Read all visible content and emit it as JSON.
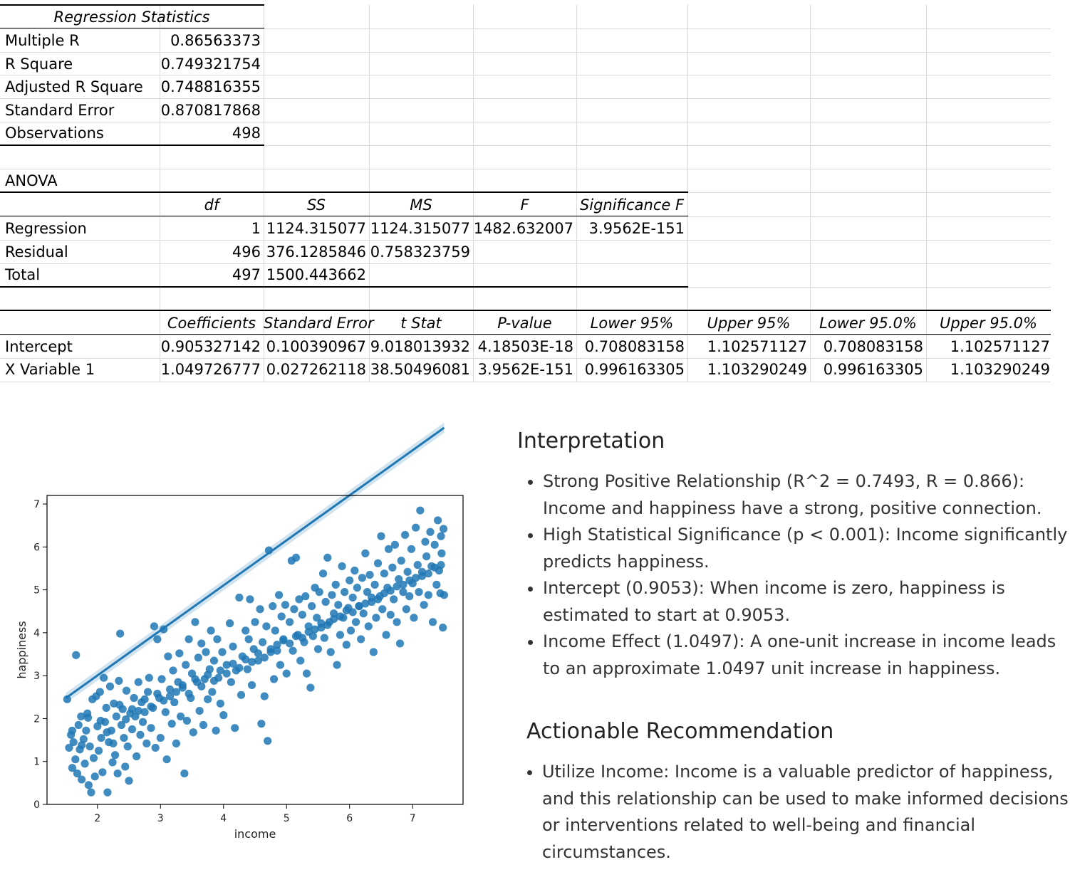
{
  "regression_statistics": {
    "title": "Regression Statistics",
    "rows": [
      {
        "label": "Multiple R",
        "value": "0.86563373"
      },
      {
        "label": "R Square",
        "value": "0.749321754"
      },
      {
        "label": "Adjusted R Square",
        "value": "0.748816355"
      },
      {
        "label": "Standard Error",
        "value": "0.870817868"
      },
      {
        "label": "Observations",
        "value": "498"
      }
    ]
  },
  "anova": {
    "title": "ANOVA",
    "headers": [
      "df",
      "SS",
      "MS",
      "F",
      "Significance F"
    ],
    "rows": [
      {
        "label": "Regression",
        "df": "1",
        "ss": "1124.315077",
        "ms": "1124.315077",
        "f": "1482.632007",
        "sig": "3.9562E-151"
      },
      {
        "label": "Residual",
        "df": "496",
        "ss": "376.1285846",
        "ms": "0.758323759",
        "f": "",
        "sig": ""
      },
      {
        "label": "Total",
        "df": "497",
        "ss": "1500.443662",
        "ms": "",
        "f": "",
        "sig": ""
      }
    ]
  },
  "coefficients": {
    "headers": [
      "Coefficients",
      "Standard Error",
      "t Stat",
      "P-value",
      "Lower 95%",
      "Upper 95%",
      "Lower 95.0%",
      "Upper 95.0%"
    ],
    "rows": [
      {
        "label": "Intercept",
        "values": [
          "0.905327142",
          "0.100390967",
          "9.018013932",
          "4.18503E-18",
          "0.708083158",
          "1.102571127",
          "0.708083158",
          "1.102571127"
        ]
      },
      {
        "label": "X Variable 1",
        "values": [
          "1.049726777",
          "0.027262118",
          "38.50496081",
          "3.9562E-151",
          "0.996163305",
          "1.103290249",
          "0.996163305",
          "1.103290249"
        ]
      }
    ]
  },
  "chart_data": {
    "type": "scatter",
    "xlabel": "income",
    "ylabel": "happiness",
    "xlim": [
      1.2,
      7.8
    ],
    "ylim": [
      0,
      7.2
    ],
    "xticks": [
      "2",
      "3",
      "4",
      "5",
      "6",
      "7"
    ],
    "yticks": [
      "0",
      "1",
      "2",
      "3",
      "4",
      "5",
      "6",
      "7"
    ],
    "regression_line": {
      "intercept": 0.9053,
      "slope": 1.0497,
      "x_range": [
        1.5,
        7.5
      ]
    },
    "point_color": "#1f77b4",
    "points": [
      [
        1.52,
        2.45
      ],
      [
        1.55,
        1.32
      ],
      [
        1.58,
        1.62
      ],
      [
        1.6,
        0.85
      ],
      [
        1.62,
        1.45
      ],
      [
        1.65,
        1.05
      ],
      [
        1.66,
        3.48
      ],
      [
        1.68,
        0.72
      ],
      [
        1.7,
        1.85
      ],
      [
        1.72,
        1.28
      ],
      [
        1.74,
        2.05
      ],
      [
        1.75,
        0.58
      ],
      [
        1.78,
        1.52
      ],
      [
        1.8,
        0.95
      ],
      [
        1.82,
        1.72
      ],
      [
        1.84,
        2.12
      ],
      [
        1.86,
        0.45
      ],
      [
        1.88,
        1.35
      ],
      [
        1.9,
        0.28
      ],
      [
        1.92,
        2.45
      ],
      [
        1.94,
        1.08
      ],
      [
        1.96,
        0.65
      ],
      [
        1.98,
        2.52
      ],
      [
        2.0,
        1.82
      ],
      [
        2.02,
        1.25
      ],
      [
        2.04,
        2.62
      ],
      [
        2.06,
        1.55
      ],
      [
        2.08,
        0.75
      ],
      [
        2.1,
        2.95
      ],
      [
        2.12,
        1.92
      ],
      [
        2.14,
        2.25
      ],
      [
        2.16,
        0.28
      ],
      [
        2.18,
        1.45
      ],
      [
        2.2,
        2.75
      ],
      [
        2.22,
        1.72
      ],
      [
        2.24,
        0.98
      ],
      [
        2.26,
        2.35
      ],
      [
        2.28,
        1.15
      ],
      [
        2.3,
        2.05
      ],
      [
        2.32,
        0.72
      ],
      [
        2.34,
        2.88
      ],
      [
        2.36,
        3.98
      ],
      [
        2.38,
        1.85
      ],
      [
        2.4,
        2.22
      ],
      [
        2.42,
        1.55
      ],
      [
        2.44,
        0.88
      ],
      [
        2.46,
        2.65
      ],
      [
        2.48,
        1.35
      ],
      [
        2.5,
        0.55
      ],
      [
        2.52,
        2.12
      ],
      [
        2.55,
        1.75
      ],
      [
        2.58,
        2.48
      ],
      [
        2.6,
        2.05
      ],
      [
        2.62,
        1.12
      ],
      [
        2.65,
        2.85
      ],
      [
        2.68,
        1.62
      ],
      [
        2.7,
        2.38
      ],
      [
        2.72,
        1.92
      ],
      [
        2.75,
        2.15
      ],
      [
        2.78,
        1.42
      ],
      [
        2.8,
        2.62
      ],
      [
        2.82,
        2.95
      ],
      [
        2.85,
        1.78
      ],
      [
        2.88,
        2.25
      ],
      [
        2.9,
        4.15
      ],
      [
        2.92,
        1.32
      ],
      [
        2.95,
        3.85
      ],
      [
        2.98,
        2.48
      ],
      [
        3.0,
        1.55
      ],
      [
        3.02,
        2.92
      ],
      [
        3.05,
        4.08
      ],
      [
        3.08,
        2.15
      ],
      [
        3.1,
        1.05
      ],
      [
        3.12,
        3.45
      ],
      [
        3.15,
        2.68
      ],
      [
        3.18,
        1.88
      ],
      [
        3.2,
        3.12
      ],
      [
        3.22,
        2.38
      ],
      [
        3.25,
        1.42
      ],
      [
        3.28,
        2.85
      ],
      [
        3.3,
        3.52
      ],
      [
        3.32,
        2.05
      ],
      [
        3.35,
        2.72
      ],
      [
        3.38,
        0.72
      ],
      [
        3.4,
        3.25
      ],
      [
        3.42,
        1.95
      ],
      [
        3.45,
        3.85
      ],
      [
        3.48,
        2.48
      ],
      [
        3.5,
        3.05
      ],
      [
        3.52,
        1.68
      ],
      [
        3.55,
        4.25
      ],
      [
        3.58,
        2.85
      ],
      [
        3.6,
        3.42
      ],
      [
        3.62,
        2.18
      ],
      [
        3.65,
        3.75
      ],
      [
        3.68,
        1.85
      ],
      [
        3.7,
        2.92
      ],
      [
        3.72,
        3.55
      ],
      [
        3.75,
        2.45
      ],
      [
        3.78,
        3.15
      ],
      [
        3.8,
        4.05
      ],
      [
        3.82,
        2.62
      ],
      [
        3.85,
        3.35
      ],
      [
        3.88,
        1.72
      ],
      [
        3.9,
        3.85
      ],
      [
        3.92,
        2.95
      ],
      [
        3.95,
        2.35
      ],
      [
        3.98,
        3.55
      ],
      [
        4.0,
        2.08
      ],
      [
        4.05,
        3.25
      ],
      [
        4.1,
        4.22
      ],
      [
        4.12,
        2.85
      ],
      [
        4.15,
        3.68
      ],
      [
        4.18,
        1.78
      ],
      [
        4.2,
        3.12
      ],
      [
        4.25,
        4.82
      ],
      [
        4.28,
        2.55
      ],
      [
        4.3,
        3.45
      ],
      [
        4.35,
        4.05
      ],
      [
        4.38,
        3.15
      ],
      [
        4.4,
        3.85
      ],
      [
        4.42,
        4.78
      ],
      [
        4.45,
        2.78
      ],
      [
        4.48,
        3.62
      ],
      [
        4.5,
        4.25
      ],
      [
        4.55,
        3.35
      ],
      [
        4.58,
        4.55
      ],
      [
        4.6,
        1.88
      ],
      [
        4.62,
        3.78
      ],
      [
        4.65,
        2.52
      ],
      [
        4.68,
        4.15
      ],
      [
        4.7,
        1.48
      ],
      [
        4.72,
        5.92
      ],
      [
        4.75,
        3.55
      ],
      [
        4.78,
        4.62
      ],
      [
        4.8,
        2.92
      ],
      [
        4.82,
        4.05
      ],
      [
        4.85,
        3.72
      ],
      [
        4.88,
        4.88
      ],
      [
        4.9,
        3.25
      ],
      [
        4.92,
        4.38
      ],
      [
        4.95,
        3.85
      ],
      [
        4.98,
        4.65
      ],
      [
        5.0,
        3.05
      ],
      [
        5.05,
        4.25
      ],
      [
        5.08,
        5.68
      ],
      [
        5.1,
        3.58
      ],
      [
        5.12,
        4.55
      ],
      [
        5.15,
        5.75
      ],
      [
        5.18,
        3.95
      ],
      [
        5.2,
        4.78
      ],
      [
        5.22,
        3.35
      ],
      [
        5.25,
        4.42
      ],
      [
        5.28,
        3.78
      ],
      [
        5.3,
        4.85
      ],
      [
        5.32,
        3.05
      ],
      [
        5.35,
        4.15
      ],
      [
        5.38,
        2.72
      ],
      [
        5.4,
        4.62
      ],
      [
        5.42,
        3.92
      ],
      [
        5.45,
        5.05
      ],
      [
        5.48,
        4.35
      ],
      [
        5.5,
        3.62
      ],
      [
        5.52,
        4.95
      ],
      [
        5.55,
        4.12
      ],
      [
        5.58,
        5.38
      ],
      [
        5.6,
        3.88
      ],
      [
        5.62,
        4.72
      ],
      [
        5.65,
        5.75
      ],
      [
        5.68,
        4.25
      ],
      [
        5.7,
        3.55
      ],
      [
        5.72,
        4.88
      ],
      [
        5.75,
        4.45
      ],
      [
        5.78,
        5.12
      ],
      [
        5.8,
        3.25
      ],
      [
        5.82,
        4.65
      ],
      [
        5.85,
        3.95
      ],
      [
        5.88,
        5.55
      ],
      [
        5.9,
        4.35
      ],
      [
        5.92,
        4.95
      ],
      [
        5.95,
        3.72
      ],
      [
        5.98,
        4.58
      ],
      [
        6.0,
        5.22
      ],
      [
        6.02,
        4.05
      ],
      [
        6.05,
        4.82
      ],
      [
        6.08,
        5.45
      ],
      [
        6.1,
        4.25
      ],
      [
        6.12,
        5.05
      ],
      [
        6.15,
        4.62
      ],
      [
        6.18,
        3.85
      ],
      [
        6.2,
        5.28
      ],
      [
        6.22,
        4.45
      ],
      [
        6.25,
        5.85
      ],
      [
        6.28,
        4.95
      ],
      [
        6.3,
        4.15
      ],
      [
        6.32,
        5.35
      ],
      [
        6.35,
        4.72
      ],
      [
        6.38,
        3.55
      ],
      [
        6.4,
        5.12
      ],
      [
        6.42,
        4.35
      ],
      [
        6.45,
        5.62
      ],
      [
        6.48,
        4.85
      ],
      [
        6.5,
        6.25
      ],
      [
        6.52,
        4.55
      ],
      [
        6.55,
        5.38
      ],
      [
        6.58,
        3.95
      ],
      [
        6.6,
        5.05
      ],
      [
        6.62,
        5.95
      ],
      [
        6.65,
        4.42
      ],
      [
        6.68,
        5.52
      ],
      [
        6.7,
        4.78
      ],
      [
        6.72,
        6.05
      ],
      [
        6.75,
        4.25
      ],
      [
        6.78,
        5.25
      ],
      [
        6.8,
        3.75
      ],
      [
        6.82,
        5.68
      ],
      [
        6.85,
        4.95
      ],
      [
        6.88,
        6.28
      ],
      [
        6.9,
        4.55
      ],
      [
        6.92,
        5.42
      ],
      [
        6.95,
        4.85
      ],
      [
        6.98,
        5.95
      ],
      [
        7.0,
        5.15
      ],
      [
        7.02,
        4.35
      ],
      [
        7.05,
        6.45
      ],
      [
        7.08,
        5.58
      ],
      [
        7.1,
        4.95
      ],
      [
        7.12,
        6.85
      ],
      [
        7.15,
        5.32
      ],
      [
        7.18,
        4.65
      ],
      [
        7.2,
        6.12
      ],
      [
        7.22,
        5.78
      ],
      [
        7.25,
        4.88
      ],
      [
        7.28,
        6.35
      ],
      [
        7.3,
        5.55
      ],
      [
        7.32,
        4.25
      ],
      [
        7.35,
        6.05
      ],
      [
        7.38,
        5.12
      ],
      [
        7.4,
        6.62
      ],
      [
        7.42,
        5.45
      ],
      [
        7.44,
        4.92
      ],
      [
        7.45,
        6.25
      ],
      [
        7.46,
        5.85
      ],
      [
        7.48,
        4.12
      ],
      [
        7.49,
        6.42
      ],
      [
        7.5,
        4.88
      ],
      [
        1.6,
        1.72
      ],
      [
        1.75,
        1.38
      ],
      [
        1.85,
        2.02
      ],
      [
        2.05,
        1.95
      ],
      [
        2.15,
        1.68
      ],
      [
        2.25,
        1.42
      ],
      [
        2.35,
        2.32
      ],
      [
        2.45,
        1.98
      ],
      [
        2.55,
        2.22
      ],
      [
        2.65,
        2.18
      ],
      [
        2.75,
        2.45
      ],
      [
        2.85,
        2.28
      ],
      [
        2.95,
        2.58
      ],
      [
        3.05,
        2.42
      ],
      [
        3.15,
        2.52
      ],
      [
        3.25,
        2.62
      ],
      [
        3.35,
        2.78
      ],
      [
        3.45,
        2.58
      ],
      [
        3.55,
        2.92
      ],
      [
        3.65,
        2.75
      ],
      [
        3.75,
        3.02
      ],
      [
        3.85,
        2.88
      ],
      [
        3.95,
        3.12
      ],
      [
        4.05,
        3.05
      ],
      [
        4.15,
        3.28
      ],
      [
        4.25,
        3.18
      ],
      [
        4.35,
        3.38
      ],
      [
        4.45,
        3.32
      ],
      [
        4.55,
        3.52
      ],
      [
        4.65,
        3.42
      ],
      [
        4.75,
        3.62
      ],
      [
        4.85,
        3.58
      ],
      [
        4.95,
        3.82
      ],
      [
        5.05,
        3.75
      ],
      [
        5.15,
        3.92
      ],
      [
        5.25,
        3.88
      ],
      [
        5.35,
        4.02
      ],
      [
        5.45,
        4.08
      ],
      [
        5.55,
        4.22
      ],
      [
        5.65,
        4.18
      ],
      [
        5.75,
        4.32
      ],
      [
        5.85,
        4.38
      ],
      [
        5.95,
        4.52
      ],
      [
        6.05,
        4.48
      ],
      [
        6.15,
        4.62
      ],
      [
        6.25,
        4.68
      ],
      [
        6.35,
        4.82
      ],
      [
        6.45,
        4.78
      ],
      [
        6.55,
        4.92
      ],
      [
        6.65,
        4.98
      ],
      [
        6.75,
        5.08
      ],
      [
        6.85,
        5.12
      ],
      [
        6.95,
        5.22
      ],
      [
        7.05,
        5.28
      ],
      [
        7.15,
        5.42
      ],
      [
        7.25,
        5.38
      ],
      [
        7.35,
        5.52
      ],
      [
        7.45,
        5.58
      ]
    ]
  },
  "interpretation": {
    "title": "Interpretation",
    "items": [
      "Strong Positive Relationship (R^2 = 0.7493, R = 0.866): Income and happiness have a strong, positive connection.",
      "High Statistical Significance (p < 0.001): Income significantly predicts happiness.",
      "Intercept (0.9053): When income is zero, happiness is estimated to start at 0.9053.",
      "Income Effect (1.0497): A one-unit increase in income leads to an approximate 1.0497 unit increase in happiness."
    ]
  },
  "recommendation": {
    "title": "Actionable Recommendation",
    "items": [
      "Utilize Income: Income is a valuable predictor of happiness, and this relationship can be used to make informed decisions or interventions related to well-being and financial circumstances."
    ]
  }
}
